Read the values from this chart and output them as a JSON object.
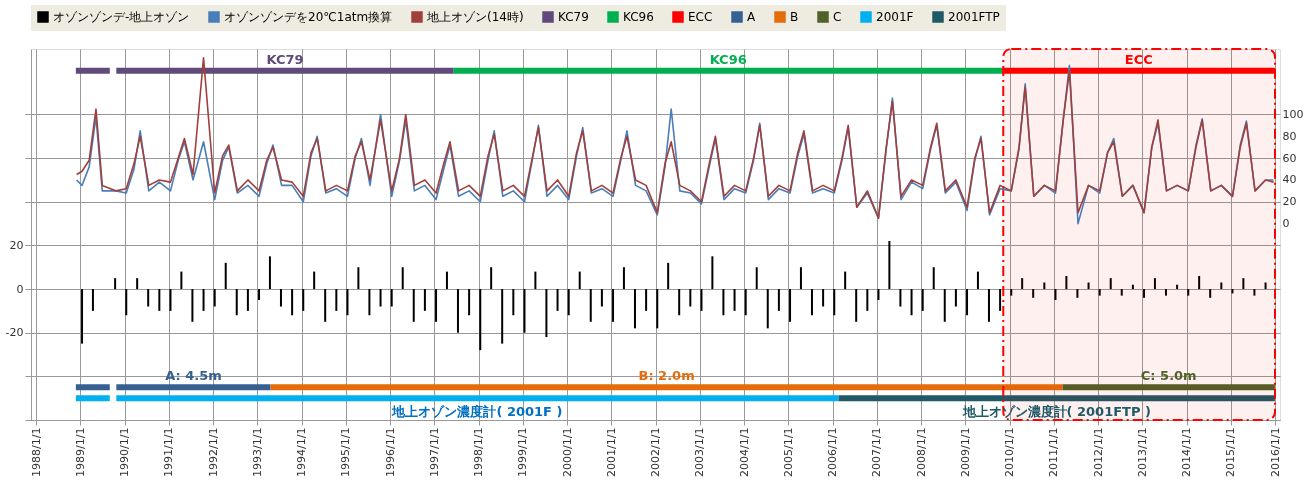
{
  "chart_data": {
    "type": "line",
    "legend": "top",
    "grid": true,
    "xlim": [
      "1988-01-01",
      "2016-01-01"
    ],
    "xticks": [
      {
        "value": "1988-01-01",
        "label": "1988/1/1"
      },
      {
        "value": "1989-01-01",
        "label": "1989/1/1"
      },
      {
        "value": "1990-01-01",
        "label": "1990/1/1"
      },
      {
        "value": "1991-01-01",
        "label": "1991/1/1"
      },
      {
        "value": "1992-01-01",
        "label": "1992/1/1"
      },
      {
        "value": "1993-01-01",
        "label": "1993/1/1"
      },
      {
        "value": "1994-01-01",
        "label": "1994/1/1"
      },
      {
        "value": "1995-01-01",
        "label": "1995/1/1"
      },
      {
        "value": "1996-01-01",
        "label": "1996/1/1"
      },
      {
        "value": "1997-01-01",
        "label": "1997/1/1"
      },
      {
        "value": "1998-01-01",
        "label": "1998/1/1"
      },
      {
        "value": "1999-01-01",
        "label": "1999/1/1"
      },
      {
        "value": "2000-01-01",
        "label": "2000/1/1"
      },
      {
        "value": "2001-01-01",
        "label": "2001/1/1"
      },
      {
        "value": "2002-01-01",
        "label": "2002/1/1"
      },
      {
        "value": "2003-01-01",
        "label": "2003/1/1"
      },
      {
        "value": "2004-01-01",
        "label": "2004/1/1"
      },
      {
        "value": "2005-01-01",
        "label": "2005/1/1"
      },
      {
        "value": "2006-01-01",
        "label": "2006/1/1"
      },
      {
        "value": "2007-01-01",
        "label": "2007/1/1"
      },
      {
        "value": "2008-01-01",
        "label": "2008/1/1"
      },
      {
        "value": "2009-01-01",
        "label": "2009/1/1"
      },
      {
        "value": "2010-01-01",
        "label": "2010/1/1"
      },
      {
        "value": "2011-01-01",
        "label": "2011/1/1"
      },
      {
        "value": "2012-01-01",
        "label": "2012/1/1"
      },
      {
        "value": "2013-01-01",
        "label": "2013/1/1"
      },
      {
        "value": "2014-01-01",
        "label": "2014/1/1"
      },
      {
        "value": "2015-01-01",
        "label": "2015/1/1"
      },
      {
        "value": "2016-01-01",
        "label": "2016/1/1"
      }
    ],
    "ylim": [
      -60,
      110
    ],
    "yticks": [
      {
        "value": -60,
        "label": null
      },
      {
        "value": -40,
        "label": null
      },
      -20,
      0,
      20,
      {
        "value": 40,
        "label": null
      },
      {
        "value": 60,
        "label": null
      },
      {
        "value": 80,
        "label": null
      }
    ],
    "y2lim": [
      -180,
      160
    ],
    "y2ticks": [
      0,
      20,
      40,
      60,
      80,
      100
    ],
    "series": [
      {
        "name": "オゾンゾンデ-地上オゾン",
        "type": "bar",
        "color": "#000000",
        "x": [
          "1989-01-15",
          "1989-04-15",
          "1989-07-15",
          "1989-10-15",
          "1990-01-15",
          "1990-04-15",
          "1990-07-15",
          "1990-10-15",
          "1991-01-15",
          "1991-04-15",
          "1991-07-15",
          "1991-10-15",
          "1992-01-15",
          "1992-04-15",
          "1992-07-15",
          "1992-10-15",
          "1993-01-15",
          "1993-04-15",
          "1993-07-15",
          "1993-10-15",
          "1994-01-15",
          "1994-04-15",
          "1994-07-15",
          "1994-10-15",
          "1995-01-15",
          "1995-04-15",
          "1995-07-15",
          "1995-10-15",
          "1996-01-15",
          "1996-04-15",
          "1996-07-15",
          "1996-10-15",
          "1997-01-15",
          "1997-04-15",
          "1997-07-15",
          "1997-10-15",
          "1998-01-15",
          "1998-04-15",
          "1998-07-15",
          "1998-10-15",
          "1999-01-15",
          "1999-04-15",
          "1999-07-15",
          "1999-10-15",
          "2000-01-15",
          "2000-04-15",
          "2000-07-15",
          "2000-10-15",
          "2001-01-15",
          "2001-04-15",
          "2001-07-15",
          "2001-10-15",
          "2002-01-15",
          "2002-04-15",
          "2002-07-15",
          "2002-10-15",
          "2003-01-15",
          "2003-04-15",
          "2003-07-15",
          "2003-10-15",
          "2004-01-15",
          "2004-04-15",
          "2004-07-15",
          "2004-10-15",
          "2005-01-15",
          "2005-04-15",
          "2005-07-15",
          "2005-10-15",
          "2006-01-15",
          "2006-04-15",
          "2006-07-15",
          "2006-10-15",
          "2007-01-15",
          "2007-04-15",
          "2007-07-15",
          "2007-10-15",
          "2008-01-15",
          "2008-04-15",
          "2008-07-15",
          "2008-10-15",
          "2009-01-15",
          "2009-04-15",
          "2009-07-15",
          "2009-10-15",
          "2010-01-15",
          "2010-04-15",
          "2010-07-15",
          "2010-10-15",
          "2011-01-15",
          "2011-04-15",
          "2011-07-15",
          "2011-10-15",
          "2012-01-15",
          "2012-04-15",
          "2012-07-15",
          "2012-10-15",
          "2013-01-15",
          "2013-04-15",
          "2013-07-15",
          "2013-10-15",
          "2014-01-15",
          "2014-04-15",
          "2014-07-15",
          "2014-10-15",
          "2015-01-15",
          "2015-04-15",
          "2015-07-15",
          "2015-10-15"
        ],
        "values": [
          -25,
          -10,
          null,
          5,
          -12,
          5,
          -8,
          -10,
          -10,
          8,
          -15,
          -10,
          -8,
          12,
          -12,
          -10,
          -5,
          15,
          -8,
          -12,
          -10,
          8,
          -15,
          -10,
          -12,
          10,
          -12,
          -8,
          -8,
          10,
          -15,
          -10,
          -15,
          8,
          -20,
          -12,
          -28,
          10,
          -25,
          -12,
          -20,
          8,
          -22,
          -10,
          -12,
          8,
          -15,
          -8,
          -15,
          10,
          -18,
          -10,
          -18,
          12,
          -12,
          -8,
          -10,
          15,
          -12,
          -10,
          -12,
          10,
          -18,
          -10,
          -15,
          10,
          -12,
          -8,
          -12,
          8,
          -15,
          -10,
          -5,
          22,
          -8,
          -12,
          -10,
          10,
          -15,
          -8,
          -12,
          8,
          -15,
          -10,
          -3,
          5,
          -4,
          3,
          -5,
          6,
          -4,
          3,
          -3,
          5,
          -3,
          2,
          -4,
          5,
          -3,
          2,
          -3,
          6,
          -4,
          3,
          -2,
          5,
          -3,
          3
        ]
      },
      {
        "name": "オゾンゾンデを20℃1atm換算",
        "axis": "y2",
        "color": "#4a7ebb",
        "x": [
          "1988-12-01",
          "1989-01-15",
          "1989-03-15",
          "1989-05-10",
          "1989-07-01",
          "1989-10-20",
          "1990-01-15",
          "1990-03-20",
          "1990-05-10",
          "1990-07-20",
          "1990-10-15",
          "1991-01-15",
          "1991-03-20",
          "1991-05-10",
          "1991-07-20",
          "1991-10-15",
          "1992-01-15",
          "1992-03-20",
          "1992-05-10",
          "1992-07-20",
          "1992-10-15",
          "1993-01-15",
          "1993-03-20",
          "1993-05-10",
          "1993-07-20",
          "1993-10-15",
          "1994-01-15",
          "1994-03-20",
          "1994-05-10",
          "1994-07-20",
          "1994-10-15",
          "1995-01-15",
          "1995-03-20",
          "1995-05-10",
          "1995-07-20",
          "1995-10-15",
          "1996-01-15",
          "1996-03-20",
          "1996-05-10",
          "1996-07-20",
          "1996-10-15",
          "1997-01-15",
          "1997-03-20",
          "1997-05-10",
          "1997-07-20",
          "1997-10-15",
          "1998-01-15",
          "1998-03-20",
          "1998-05-10",
          "1998-07-20",
          "1998-10-15",
          "1999-01-15",
          "1999-03-20",
          "1999-05-10",
          "1999-07-20",
          "1999-10-15",
          "2000-01-15",
          "2000-03-20",
          "2000-05-10",
          "2000-07-20",
          "2000-10-15",
          "2001-01-15",
          "2001-03-20",
          "2001-05-10",
          "2001-07-20",
          "2001-10-15",
          "2002-01-15",
          "2002-03-20",
          "2002-05-10",
          "2002-07-20",
          "2002-10-15",
          "2003-01-15",
          "2003-03-20",
          "2003-05-10",
          "2003-07-20",
          "2003-10-15",
          "2004-01-15",
          "2004-03-20",
          "2004-05-10",
          "2004-07-20",
          "2004-10-15",
          "2005-01-15",
          "2005-03-20",
          "2005-05-10",
          "2005-07-20",
          "2005-10-15",
          "2006-01-15",
          "2006-03-20",
          "2006-05-10",
          "2006-07-20",
          "2006-10-15",
          "2007-01-15",
          "2007-03-20",
          "2007-05-10",
          "2007-07-20",
          "2007-10-15",
          "2008-01-15",
          "2008-03-20",
          "2008-05-10",
          "2008-07-20",
          "2008-10-15",
          "2009-01-15",
          "2009-03-20",
          "2009-05-10",
          "2009-07-20",
          "2009-10-15",
          "2010-01-15",
          "2010-03-20",
          "2010-05-10",
          "2010-07-20",
          "2010-10-15",
          "2011-01-15",
          "2011-03-20",
          "2011-05-10",
          "2011-07-20",
          "2011-10-15",
          "2012-01-15",
          "2012-03-20",
          "2012-05-10",
          "2012-07-20",
          "2012-10-15",
          "2013-01-15",
          "2013-03-20",
          "2013-05-10",
          "2013-07-20",
          "2013-10-15",
          "2014-01-15",
          "2014-03-20",
          "2014-05-10",
          "2014-07-20",
          "2014-10-15",
          "2015-01-15",
          "2015-03-20",
          "2015-05-10",
          "2015-07-20",
          "2015-10-15",
          "2015-12-20"
        ],
        "values": [
          40,
          35,
          52,
          98,
          30,
          30,
          28,
          50,
          85,
          30,
          38,
          30,
          58,
          75,
          40,
          75,
          22,
          58,
          70,
          28,
          35,
          25,
          55,
          72,
          35,
          35,
          20,
          62,
          80,
          28,
          32,
          25,
          60,
          78,
          35,
          100,
          25,
          58,
          95,
          30,
          35,
          22,
          50,
          72,
          25,
          30,
          20,
          58,
          85,
          25,
          30,
          20,
          58,
          90,
          25,
          35,
          22,
          62,
          88,
          28,
          32,
          25,
          58,
          85,
          35,
          30,
          8,
          52,
          105,
          30,
          28,
          18,
          52,
          78,
          22,
          32,
          28,
          58,
          92,
          22,
          32,
          28,
          62,
          82,
          28,
          32,
          28,
          58,
          88,
          15,
          28,
          5,
          68,
          115,
          22,
          38,
          32,
          68,
          90,
          28,
          38,
          12,
          58,
          80,
          8,
          32,
          30,
          68,
          128,
          25,
          35,
          28,
          95,
          145,
          0,
          35,
          28,
          65,
          78,
          25,
          35,
          10,
          70,
          92,
          30,
          35,
          30,
          72,
          96,
          30,
          35,
          25,
          72,
          94,
          30,
          40,
          40
        ]
      },
      {
        "name": "地上オゾン(14時)",
        "axis": "y2",
        "color": "#a0403c",
        "x": [
          "1988-12-01",
          "1989-01-15",
          "1989-03-15",
          "1989-05-10",
          "1989-07-01",
          "1989-10-20",
          "1990-01-15",
          "1990-03-20",
          "1990-05-10",
          "1990-07-20",
          "1990-10-15",
          "1991-01-15",
          "1991-03-20",
          "1991-05-10",
          "1991-07-20",
          "1991-10-15",
          "1992-01-15",
          "1992-03-20",
          "1992-05-10",
          "1992-07-20",
          "1992-10-15",
          "1993-01-15",
          "1993-03-20",
          "1993-05-10",
          "1993-07-20",
          "1993-10-15",
          "1994-01-15",
          "1994-03-20",
          "1994-05-10",
          "1994-07-20",
          "1994-10-15",
          "1995-01-15",
          "1995-03-20",
          "1995-05-10",
          "1995-07-20",
          "1995-10-15",
          "1996-01-15",
          "1996-03-20",
          "1996-05-10",
          "1996-07-20",
          "1996-10-15",
          "1997-01-15",
          "1997-03-20",
          "1997-05-10",
          "1997-07-20",
          "1997-10-15",
          "1998-01-15",
          "1998-03-20",
          "1998-05-10",
          "1998-07-20",
          "1998-10-15",
          "1999-01-15",
          "1999-03-20",
          "1999-05-10",
          "1999-07-20",
          "1999-10-15",
          "2000-01-15",
          "2000-03-20",
          "2000-05-10",
          "2000-07-20",
          "2000-10-15",
          "2001-01-15",
          "2001-03-20",
          "2001-05-10",
          "2001-07-20",
          "2001-10-15",
          "2002-01-15",
          "2002-03-20",
          "2002-05-10",
          "2002-07-20",
          "2002-10-15",
          "2003-01-15",
          "2003-03-20",
          "2003-05-10",
          "2003-07-20",
          "2003-10-15",
          "2004-01-15",
          "2004-03-20",
          "2004-05-10",
          "2004-07-20",
          "2004-10-15",
          "2005-01-15",
          "2005-03-20",
          "2005-05-10",
          "2005-07-20",
          "2005-10-15",
          "2006-01-15",
          "2006-03-20",
          "2006-05-10",
          "2006-07-20",
          "2006-10-15",
          "2007-01-15",
          "2007-03-20",
          "2007-05-10",
          "2007-07-20",
          "2007-10-15",
          "2008-01-15",
          "2008-03-20",
          "2008-05-10",
          "2008-07-20",
          "2008-10-15",
          "2009-01-15",
          "2009-03-20",
          "2009-05-10",
          "2009-07-20",
          "2009-10-15",
          "2010-01-15",
          "2010-03-20",
          "2010-05-10",
          "2010-07-20",
          "2010-10-15",
          "2011-01-15",
          "2011-03-20",
          "2011-05-10",
          "2011-07-20",
          "2011-10-15",
          "2012-01-15",
          "2012-03-20",
          "2012-05-10",
          "2012-07-20",
          "2012-10-15",
          "2013-01-15",
          "2013-03-20",
          "2013-05-10",
          "2013-07-20",
          "2013-10-15",
          "2014-01-15",
          "2014-03-20",
          "2014-05-10",
          "2014-07-20",
          "2014-10-15",
          "2015-01-15",
          "2015-03-20",
          "2015-05-10",
          "2015-07-20",
          "2015-10-15",
          "2015-12-20"
        ],
        "values": [
          45,
          48,
          58,
          105,
          35,
          30,
          32,
          55,
          80,
          35,
          40,
          38,
          60,
          78,
          45,
          152,
          28,
          62,
          72,
          30,
          40,
          30,
          58,
          70,
          40,
          38,
          25,
          65,
          78,
          30,
          35,
          30,
          62,
          75,
          40,
          95,
          30,
          60,
          100,
          35,
          40,
          28,
          55,
          75,
          30,
          35,
          25,
          62,
          82,
          30,
          35,
          25,
          60,
          88,
          30,
          40,
          25,
          65,
          85,
          30,
          35,
          28,
          60,
          80,
          40,
          35,
          10,
          55,
          75,
          35,
          30,
          20,
          55,
          80,
          25,
          35,
          30,
          60,
          90,
          25,
          35,
          30,
          65,
          85,
          30,
          35,
          30,
          60,
          90,
          15,
          30,
          5,
          70,
          112,
          25,
          40,
          35,
          70,
          92,
          30,
          40,
          15,
          60,
          78,
          10,
          35,
          30,
          70,
          125,
          25,
          35,
          30,
          95,
          140,
          10,
          35,
          30,
          65,
          75,
          25,
          35,
          10,
          70,
          95,
          30,
          35,
          30,
          70,
          95,
          30,
          35,
          25,
          70,
          92,
          30,
          40,
          38
        ]
      },
      {
        "name": "KC79",
        "color": "#604a7b",
        "x": [
          "1988-11-25",
          "1989-09-01",
          "1989-09-15",
          "1989-10-25",
          "1997-06-10"
        ],
        "values": [
          100,
          100,
          null,
          100,
          100
        ]
      },
      {
        "name": "KC96",
        "color": "#00b050",
        "x": [
          "1997-06-10",
          "2009-11-05"
        ],
        "values": [
          100,
          100
        ]
      },
      {
        "name": "ECC",
        "color": "#ff0000",
        "x": [
          "2009-11-05",
          "2015-12-31"
        ],
        "values": [
          100,
          100
        ]
      },
      {
        "name": "A",
        "color": "#366092",
        "x": [
          "1988-11-25",
          "1989-09-01",
          "1989-09-15",
          "1989-10-25",
          "1993-04-20"
        ],
        "values": [
          -45,
          -45,
          null,
          -45,
          -45
        ]
      },
      {
        "name": "B",
        "color": "#e46c0a",
        "x": [
          "1993-04-20",
          "2011-03-15"
        ],
        "values": [
          -45,
          -45
        ]
      },
      {
        "name": "C",
        "color": "#4f6228",
        "x": [
          "2011-03-15",
          "2015-12-31"
        ],
        "values": [
          -45,
          -45
        ]
      },
      {
        "name": "2001F",
        "color": "#00b0f0",
        "x": [
          "1988-11-25",
          "1989-09-01",
          "1989-09-15",
          "1989-10-25",
          "2006-02-20"
        ],
        "values": [
          -50,
          -50,
          null,
          -50,
          -50
        ]
      },
      {
        "name": "2001FTP",
        "color": "#215967",
        "x": [
          "2006-02-20",
          "2015-12-31"
        ],
        "values": [
          -50,
          -50
        ]
      }
    ],
    "annotations": [
      "KC79",
      "KC96",
      "ECC",
      "A: 4.5m",
      "B: 2.0m",
      "C: 5.0m",
      "地上オゾン濃度計( 2001F )",
      "地上オゾン濃度計( 2001FTP )"
    ],
    "bands": [
      {
        "axis": "x",
        "from": "2009-11-10",
        "to": "2016-01-01",
        "color": "#ff0000"
      }
    ]
  }
}
